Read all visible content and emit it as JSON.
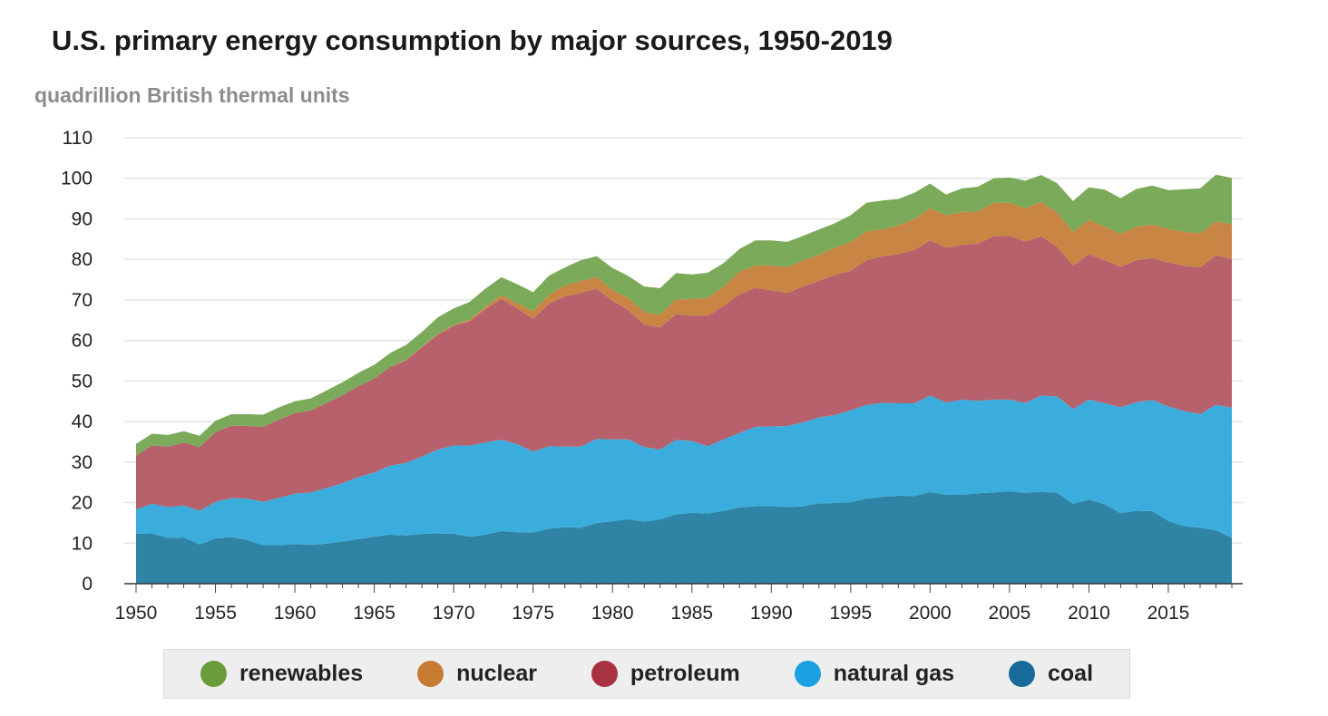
{
  "title": "U.S. primary energy consumption by major sources, 1950-2019",
  "chart_data": {
    "type": "area",
    "stacked": true,
    "title": "U.S. primary energy consumption by major sources, 1950-2019",
    "subtitle": "quadrillion British thermal units",
    "ylabel": "quadrillion British thermal units",
    "xlabel": "",
    "ylim": [
      0,
      110
    ],
    "xlim": [
      1950,
      2019
    ],
    "yticks": [
      0,
      10,
      20,
      30,
      40,
      50,
      60,
      70,
      80,
      90,
      100,
      110
    ],
    "xticks": [
      1950,
      1955,
      1960,
      1965,
      1970,
      1975,
      1980,
      1985,
      1990,
      1995,
      2000,
      2005,
      2010,
      2015
    ],
    "grid": "horizontal",
    "legend_position": "bottom",
    "x": [
      1950,
      1951,
      1952,
      1953,
      1954,
      1955,
      1956,
      1957,
      1958,
      1959,
      1960,
      1961,
      1962,
      1963,
      1964,
      1965,
      1966,
      1967,
      1968,
      1969,
      1970,
      1971,
      1972,
      1973,
      1974,
      1975,
      1976,
      1977,
      1978,
      1979,
      1980,
      1981,
      1982,
      1983,
      1984,
      1985,
      1986,
      1987,
      1988,
      1989,
      1990,
      1991,
      1992,
      1993,
      1994,
      1995,
      1996,
      1997,
      1998,
      1999,
      2000,
      2001,
      2002,
      2003,
      2004,
      2005,
      2006,
      2007,
      2008,
      2009,
      2010,
      2011,
      2012,
      2013,
      2014,
      2015,
      2016,
      2017,
      2018,
      2019
    ],
    "series": [
      {
        "name": "coal",
        "color": "#2f84a6",
        "values": [
          12.3,
          12.4,
          11.3,
          11.4,
          9.7,
          11.2,
          11.5,
          10.8,
          9.5,
          9.5,
          9.8,
          9.6,
          9.9,
          10.4,
          11.0,
          11.6,
          12.1,
          11.9,
          12.3,
          12.4,
          12.3,
          11.6,
          12.1,
          13.0,
          12.7,
          12.7,
          13.6,
          13.9,
          13.8,
          15.0,
          15.4,
          15.9,
          15.3,
          15.9,
          17.1,
          17.5,
          17.3,
          18.0,
          18.8,
          19.1,
          19.2,
          18.9,
          19.1,
          19.8,
          19.9,
          20.1,
          21.0,
          21.4,
          21.7,
          21.6,
          22.6,
          21.9,
          21.9,
          22.3,
          22.5,
          22.8,
          22.4,
          22.7,
          22.4,
          19.7,
          20.8,
          19.6,
          17.4,
          18.0,
          17.9,
          15.5,
          14.2,
          13.8,
          13.2,
          11.3
        ]
      },
      {
        "name": "natural gas",
        "color": "#3aaddd",
        "values": [
          6.0,
          7.3,
          7.6,
          7.9,
          8.3,
          9.0,
          9.6,
          10.2,
          10.7,
          11.7,
          12.4,
          12.9,
          13.7,
          14.4,
          15.3,
          15.8,
          17.0,
          17.9,
          19.1,
          20.7,
          21.8,
          22.5,
          22.7,
          22.5,
          21.7,
          19.9,
          20.3,
          19.9,
          20.0,
          20.7,
          20.2,
          19.7,
          18.4,
          17.2,
          18.4,
          17.7,
          16.6,
          17.6,
          18.4,
          19.6,
          19.6,
          20.0,
          20.7,
          21.2,
          21.7,
          22.7,
          23.1,
          23.2,
          22.8,
          22.9,
          23.8,
          22.8,
          23.5,
          22.8,
          22.9,
          22.6,
          22.2,
          23.7,
          23.8,
          23.4,
          24.6,
          24.9,
          26.1,
          26.8,
          27.4,
          28.2,
          28.4,
          28.0,
          30.9,
          32.1
        ]
      },
      {
        "name": "petroleum",
        "color": "#b7616c",
        "values": [
          13.3,
          14.4,
          14.9,
          15.5,
          15.7,
          17.2,
          17.9,
          17.9,
          18.5,
          19.3,
          19.9,
          20.2,
          21.0,
          21.7,
          22.4,
          23.2,
          24.4,
          25.3,
          26.9,
          28.3,
          29.5,
          30.6,
          32.9,
          34.8,
          33.5,
          32.7,
          35.2,
          37.1,
          37.9,
          37.1,
          34.2,
          31.9,
          30.2,
          30.1,
          31.0,
          30.9,
          32.2,
          32.9,
          34.2,
          34.2,
          33.6,
          32.8,
          33.5,
          33.7,
          34.6,
          34.4,
          35.7,
          36.2,
          36.8,
          37.8,
          38.3,
          38.2,
          38.2,
          38.8,
          40.3,
          40.4,
          39.8,
          39.3,
          36.9,
          35.3,
          35.9,
          35.3,
          34.7,
          35.0,
          35.0,
          35.5,
          35.8,
          36.2,
          36.9,
          36.7
        ]
      },
      {
        "name": "nuclear",
        "color": "#c98543",
        "values": [
          0,
          0,
          0,
          0,
          0,
          0,
          0,
          0,
          0,
          0,
          0,
          0,
          0,
          0,
          0,
          0,
          0,
          0.1,
          0.1,
          0.2,
          0.2,
          0.4,
          0.6,
          0.9,
          1.3,
          1.9,
          2.1,
          2.7,
          3.0,
          2.8,
          2.7,
          3.0,
          3.1,
          3.2,
          3.6,
          4.1,
          4.4,
          4.8,
          5.6,
          5.6,
          6.1,
          6.4,
          6.5,
          6.4,
          6.7,
          7.1,
          7.1,
          6.6,
          7.1,
          7.6,
          7.9,
          8.0,
          8.1,
          7.9,
          8.2,
          8.2,
          8.2,
          8.5,
          8.4,
          8.4,
          8.4,
          8.3,
          8.1,
          8.3,
          8.3,
          8.3,
          8.4,
          8.4,
          8.4,
          8.5
        ]
      },
      {
        "name": "renewables",
        "color": "#7bab5a",
        "values": [
          2.9,
          2.9,
          2.9,
          2.8,
          2.8,
          2.8,
          2.8,
          2.9,
          3.0,
          3.0,
          2.9,
          3.0,
          3.1,
          3.2,
          3.3,
          3.4,
          3.4,
          3.7,
          3.7,
          4.1,
          4.1,
          4.4,
          4.5,
          4.4,
          4.7,
          4.7,
          4.8,
          4.4,
          5.1,
          5.2,
          5.4,
          5.4,
          6.3,
          6.5,
          6.5,
          6.1,
          6.2,
          5.8,
          5.6,
          6.2,
          6.2,
          6.2,
          6.0,
          6.3,
          6.0,
          6.6,
          7.1,
          7.1,
          6.5,
          6.5,
          6.1,
          5.1,
          5.8,
          6.1,
          6.1,
          6.2,
          6.8,
          6.6,
          7.3,
          7.6,
          8.1,
          9.1,
          8.8,
          9.3,
          9.6,
          9.6,
          10.5,
          11.1,
          11.5,
          11.5
        ]
      }
    ]
  },
  "legend": [
    {
      "label": "renewables",
      "color": "#6a9c3c"
    },
    {
      "label": "nuclear",
      "color": "#c77a32"
    },
    {
      "label": "petroleum",
      "color": "#a8323f"
    },
    {
      "label": "natural gas",
      "color": "#1ba1e2"
    },
    {
      "label": "coal",
      "color": "#176a99"
    }
  ]
}
